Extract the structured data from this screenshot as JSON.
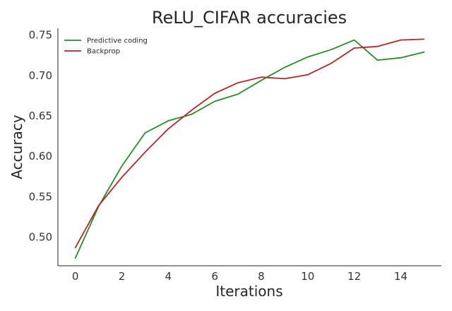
{
  "chart_data": {
    "type": "line",
    "title": "ReLU_CIFAR accuracies",
    "xlabel": "Iterations",
    "ylabel": "Accuracy",
    "xlim": [
      -0.75,
      15.75
    ],
    "ylim": [
      0.4645,
      0.7585
    ],
    "x_ticks": [
      0,
      2,
      4,
      6,
      8,
      10,
      12,
      14
    ],
    "y_ticks": [
      0.5,
      0.55,
      0.6,
      0.65,
      0.7,
      0.75
    ],
    "y_tick_labels": [
      "0.50",
      "0.55",
      "0.60",
      "0.65",
      "0.70",
      "0.75"
    ],
    "grid": false,
    "legend_position": "top-left",
    "x": [
      0,
      1,
      2,
      3,
      4,
      5,
      6,
      7,
      8,
      9,
      10,
      11,
      12,
      13,
      14,
      15
    ],
    "series": [
      {
        "name": "Predictive coding",
        "color": "#2a8a2a",
        "values": [
          0.474,
          0.538,
          0.588,
          0.629,
          0.644,
          0.652,
          0.668,
          0.677,
          0.694,
          0.71,
          0.723,
          0.732,
          0.744,
          0.719,
          0.722,
          0.729
        ]
      },
      {
        "name": "Backprop",
        "color": "#b02828",
        "values": [
          0.487,
          0.539,
          0.574,
          0.605,
          0.634,
          0.657,
          0.678,
          0.691,
          0.698,
          0.696,
          0.701,
          0.715,
          0.734,
          0.736,
          0.744,
          0.745
        ]
      }
    ]
  }
}
